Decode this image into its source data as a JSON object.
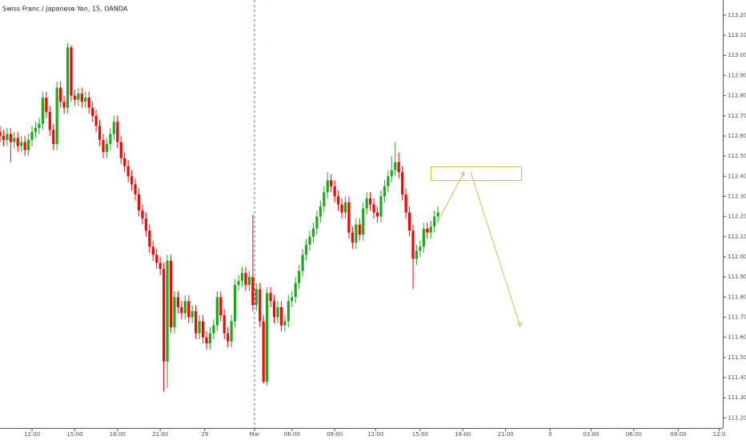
{
  "chart_data": {
    "type": "candlestick",
    "title": "Swiss Franc / Japanese Yen, 15, OANDA",
    "up_color": "#1fa71f",
    "down_color": "#ff0000",
    "grid": false,
    "xlim": [
      0,
      203
    ],
    "ylim": [
      111.15,
      113.275
    ],
    "xticks": [
      {
        "value": 9,
        "label": "12:00"
      },
      {
        "value": 21,
        "label": "15:00"
      },
      {
        "value": 33,
        "label": "18:00"
      },
      {
        "value": 45,
        "label": "21:00"
      },
      {
        "value": 57.5,
        "label": "29"
      },
      {
        "value": 71.5,
        "label": "Mar"
      },
      {
        "value": 82,
        "label": "06:00"
      },
      {
        "value": 94,
        "label": "09:00"
      },
      {
        "value": 105.5,
        "label": "12:00"
      },
      {
        "value": 118,
        "label": "15:00"
      },
      {
        "value": 130,
        "label": "18:00"
      },
      {
        "value": 142,
        "label": "21:00"
      },
      {
        "value": 154.5,
        "label": "3"
      },
      {
        "value": 166,
        "label": "03:00"
      },
      {
        "value": 178,
        "label": "06:00"
      },
      {
        "value": 190.5,
        "label": "09:00"
      },
      {
        "value": 202,
        "label": "12:0"
      }
    ],
    "yticks": [
      {
        "value": 111.2,
        "label": "111.200"
      },
      {
        "value": 111.3,
        "label": "111.300"
      },
      {
        "value": 111.4,
        "label": "111.400"
      },
      {
        "value": 111.5,
        "label": "111.500"
      },
      {
        "value": 111.6,
        "label": "111.600"
      },
      {
        "value": 111.7,
        "label": "111.700"
      },
      {
        "value": 111.8,
        "label": "111.800"
      },
      {
        "value": 111.9,
        "label": "111.900"
      },
      {
        "value": 112.0,
        "label": "112.000"
      },
      {
        "value": 112.1,
        "label": "112.100"
      },
      {
        "value": 112.2,
        "label": "112.200"
      },
      {
        "value": 112.3,
        "label": "112.300"
      },
      {
        "value": 112.4,
        "label": "112.400"
      },
      {
        "value": 112.5,
        "label": "112.500"
      },
      {
        "value": 112.6,
        "label": "112.600"
      },
      {
        "value": 112.7,
        "label": "112.700"
      },
      {
        "value": 112.8,
        "label": "112.800"
      },
      {
        "value": 112.9,
        "label": "112.900"
      },
      {
        "value": 113.0,
        "label": "113.000"
      },
      {
        "value": 113.1,
        "label": "113.100"
      },
      {
        "value": 113.2,
        "label": "113.200"
      }
    ],
    "open": [
      112.62,
      112.6,
      112.58,
      112.61,
      112.57,
      112.59,
      112.55,
      112.57,
      112.53,
      112.58,
      112.62,
      112.64,
      112.66,
      112.79,
      112.72,
      112.63,
      112.56,
      112.84,
      112.77,
      112.74,
      113.04,
      112.8,
      112.78,
      112.81,
      112.77,
      112.79,
      112.74,
      112.7,
      112.65,
      112.58,
      112.52,
      112.56,
      112.61,
      112.67,
      112.57,
      112.49,
      112.45,
      112.4,
      112.36,
      112.31,
      112.23,
      112.19,
      112.13,
      112.05,
      112.01,
      111.97,
      111.94,
      111.48,
      111.98,
      111.65,
      111.8,
      111.75,
      111.72,
      111.78,
      111.7,
      111.73,
      111.62,
      111.68,
      111.6,
      111.57,
      111.62,
      111.66,
      111.8,
      111.71,
      111.62,
      111.58,
      111.68,
      111.86,
      111.88,
      111.92,
      111.86,
      111.9,
      111.76,
      111.84,
      111.68,
      111.38,
      111.82,
      111.78,
      111.7,
      111.75,
      111.66,
      111.68,
      111.78,
      111.8,
      111.87,
      111.93,
      112.01,
      112.06,
      112.1,
      112.14,
      112.2,
      112.25,
      112.32,
      112.38,
      112.35,
      112.3,
      112.26,
      112.22,
      112.27,
      112.12,
      112.07,
      112.16,
      112.11,
      112.24,
      112.29,
      112.26,
      112.22,
      112.2,
      112.3,
      112.35,
      112.4,
      112.43,
      112.47,
      112.42,
      112.31,
      112.22,
      112.13,
      111.99,
      112.03,
      112.05,
      112.14,
      112.12,
      112.15,
      112.2
    ],
    "high": [
      112.65,
      112.63,
      112.64,
      112.64,
      112.62,
      112.62,
      112.6,
      112.6,
      112.61,
      112.65,
      112.67,
      112.69,
      112.82,
      112.82,
      112.75,
      112.66,
      112.87,
      112.87,
      112.8,
      113.06,
      113.05,
      112.83,
      112.84,
      112.84,
      112.82,
      112.82,
      112.77,
      112.73,
      112.68,
      112.61,
      112.59,
      112.64,
      112.7,
      112.7,
      112.6,
      112.52,
      112.48,
      112.43,
      112.39,
      112.34,
      112.26,
      112.22,
      112.16,
      112.08,
      112.04,
      112.0,
      111.97,
      112.01,
      112.01,
      111.83,
      111.83,
      111.78,
      111.81,
      111.81,
      111.76,
      111.76,
      111.71,
      111.71,
      111.63,
      111.65,
      111.69,
      111.83,
      111.83,
      111.74,
      111.65,
      111.71,
      111.89,
      111.91,
      111.95,
      111.95,
      111.93,
      112.21,
      111.87,
      111.87,
      111.71,
      111.85,
      111.85,
      111.81,
      111.78,
      111.78,
      111.71,
      111.81,
      111.83,
      111.9,
      111.96,
      112.04,
      112.09,
      112.13,
      112.17,
      112.23,
      112.28,
      112.35,
      112.42,
      112.41,
      112.38,
      112.33,
      112.29,
      112.3,
      112.3,
      112.15,
      112.19,
      112.19,
      112.27,
      112.32,
      112.32,
      112.29,
      112.25,
      112.33,
      112.38,
      112.43,
      112.5,
      112.57,
      112.52,
      112.45,
      112.34,
      112.25,
      112.16,
      112.06,
      112.08,
      112.17,
      112.17,
      112.18,
      112.23,
      112.25
    ],
    "low": [
      112.57,
      112.55,
      112.55,
      112.47,
      112.54,
      112.52,
      112.52,
      112.5,
      112.5,
      112.55,
      112.59,
      112.61,
      112.63,
      112.69,
      112.6,
      112.53,
      112.53,
      112.74,
      112.71,
      112.71,
      112.77,
      112.75,
      112.75,
      112.74,
      112.74,
      112.71,
      112.67,
      112.62,
      112.55,
      112.49,
      112.49,
      112.53,
      112.58,
      112.54,
      112.46,
      112.42,
      112.37,
      112.33,
      112.28,
      112.2,
      112.16,
      112.1,
      112.02,
      111.98,
      111.94,
      111.91,
      111.33,
      111.35,
      111.62,
      111.62,
      111.72,
      111.69,
      111.69,
      111.67,
      111.67,
      111.59,
      111.59,
      111.57,
      111.54,
      111.54,
      111.59,
      111.63,
      111.68,
      111.59,
      111.55,
      111.55,
      111.65,
      111.83,
      111.85,
      111.83,
      111.83,
      111.73,
      111.73,
      111.65,
      111.37,
      111.36,
      111.75,
      111.67,
      111.67,
      111.63,
      111.63,
      111.65,
      111.75,
      111.77,
      111.84,
      111.9,
      111.98,
      112.03,
      112.07,
      112.11,
      112.17,
      112.22,
      112.29,
      112.32,
      112.27,
      112.23,
      112.19,
      112.19,
      112.09,
      112.04,
      112.04,
      112.08,
      112.08,
      112.21,
      112.23,
      112.19,
      112.17,
      112.17,
      112.27,
      112.32,
      112.37,
      112.4,
      112.39,
      112.28,
      112.19,
      112.1,
      111.84,
      111.96,
      112.0,
      112.02,
      112.09,
      112.09,
      112.12,
      112.17
    ],
    "close": [
      112.6,
      112.58,
      112.61,
      112.57,
      112.59,
      112.55,
      112.57,
      112.53,
      112.58,
      112.62,
      112.64,
      112.66,
      112.79,
      112.72,
      112.63,
      112.56,
      112.84,
      112.77,
      112.74,
      113.04,
      112.8,
      112.78,
      112.81,
      112.77,
      112.79,
      112.74,
      112.7,
      112.65,
      112.58,
      112.52,
      112.56,
      112.61,
      112.67,
      112.57,
      112.49,
      112.45,
      112.4,
      112.36,
      112.31,
      112.23,
      112.19,
      112.13,
      112.05,
      112.01,
      111.97,
      111.94,
      111.48,
      111.98,
      111.65,
      111.8,
      111.75,
      111.72,
      111.78,
      111.7,
      111.73,
      111.62,
      111.68,
      111.6,
      111.57,
      111.62,
      111.66,
      111.8,
      111.71,
      111.62,
      111.58,
      111.68,
      111.86,
      111.88,
      111.92,
      111.86,
      111.9,
      111.76,
      111.84,
      111.68,
      111.38,
      111.82,
      111.78,
      111.7,
      111.75,
      111.66,
      111.68,
      111.78,
      111.8,
      111.87,
      111.93,
      112.01,
      112.06,
      112.1,
      112.14,
      112.2,
      112.25,
      112.32,
      112.38,
      112.35,
      112.3,
      112.26,
      112.22,
      112.27,
      112.12,
      112.07,
      112.16,
      112.11,
      112.24,
      112.29,
      112.26,
      112.22,
      112.2,
      112.3,
      112.35,
      112.4,
      112.43,
      112.47,
      112.42,
      112.31,
      112.22,
      112.13,
      111.99,
      112.03,
      112.05,
      112.14,
      112.12,
      112.15,
      112.2,
      112.22
    ]
  }
}
